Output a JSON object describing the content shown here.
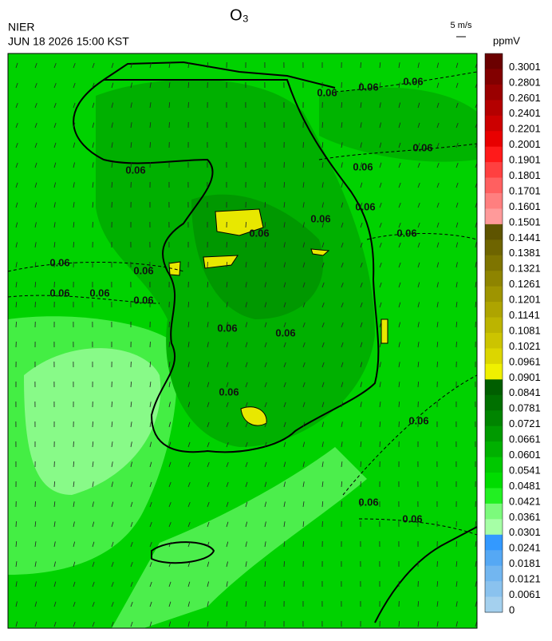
{
  "header": {
    "title": "O₃",
    "source": "NIER",
    "datetime": "JUN 18 2026 15:00 KST"
  },
  "wind_legend": {
    "label": "5 m/s"
  },
  "map": {
    "contour_label": "0.06"
  },
  "colorbar": {
    "unit": "ppmV",
    "levels": [
      {
        "label": "0.3001",
        "color": "#6b0000"
      },
      {
        "label": "0.2801",
        "color": "#820000"
      },
      {
        "label": "0.2601",
        "color": "#9a0000"
      },
      {
        "label": "0.2401",
        "color": "#b40000"
      },
      {
        "label": "0.2201",
        "color": "#cc0000"
      },
      {
        "label": "0.2001",
        "color": "#e80000"
      },
      {
        "label": "0.1901",
        "color": "#ff1a1a"
      },
      {
        "label": "0.1801",
        "color": "#ff4040"
      },
      {
        "label": "0.1701",
        "color": "#ff6060"
      },
      {
        "label": "0.1601",
        "color": "#ff7f7f"
      },
      {
        "label": "0.1501",
        "color": "#ff9a9a"
      },
      {
        "label": "0.1441",
        "color": "#5e5400"
      },
      {
        "label": "0.1381",
        "color": "#6e6400"
      },
      {
        "label": "0.1321",
        "color": "#7e7400"
      },
      {
        "label": "0.1261",
        "color": "#8e8400"
      },
      {
        "label": "0.1201",
        "color": "#9e9400"
      },
      {
        "label": "0.1141",
        "color": "#aea400"
      },
      {
        "label": "0.1081",
        "color": "#bcb400"
      },
      {
        "label": "0.1021",
        "color": "#ccc400"
      },
      {
        "label": "0.0961",
        "color": "#dcd600"
      },
      {
        "label": "0.0901",
        "color": "#f0f000"
      },
      {
        "label": "0.0841",
        "color": "#005e00"
      },
      {
        "label": "0.0781",
        "color": "#007000"
      },
      {
        "label": "0.0721",
        "color": "#008400"
      },
      {
        "label": "0.0661",
        "color": "#009a00"
      },
      {
        "label": "0.0601",
        "color": "#00b000"
      },
      {
        "label": "0.0541",
        "color": "#00c800"
      },
      {
        "label": "0.0481",
        "color": "#00dc00"
      },
      {
        "label": "0.0421",
        "color": "#22f022"
      },
      {
        "label": "0.0361",
        "color": "#7cfa7c"
      },
      {
        "label": "0.0301",
        "color": "#a6ffa6"
      },
      {
        "label": "0.0241",
        "color": "#3399ff"
      },
      {
        "label": "0.0181",
        "color": "#55a8f4"
      },
      {
        "label": "0.0121",
        "color": "#72b6f0"
      },
      {
        "label": "0.0061",
        "color": "#8ac2ee"
      },
      {
        "label": "0",
        "color": "#a4d0ee"
      }
    ]
  }
}
